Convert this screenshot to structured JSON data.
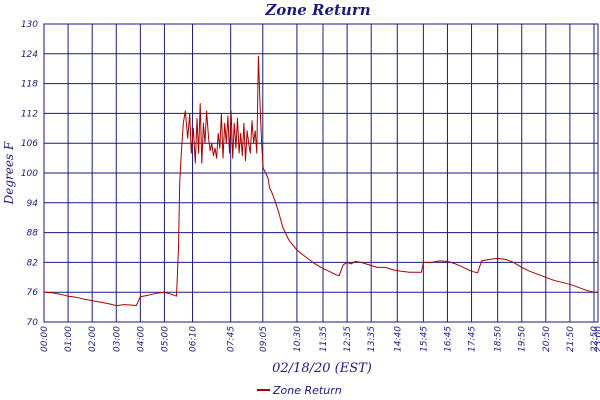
{
  "chart_data": {
    "type": "line",
    "title": "Zone Return",
    "xlabel": "02/18/20 (EST)",
    "ylabel": "Degrees F",
    "ylim": [
      70,
      130
    ],
    "yticks": [
      70,
      76,
      82,
      88,
      94,
      100,
      106,
      112,
      118,
      124,
      130
    ],
    "xlim": [
      "00:00",
      "23:00"
    ],
    "xtick_labels": [
      "00:00",
      "01:00",
      "02:00",
      "03:00",
      "04:00",
      "05:00",
      "06:10",
      "07:45",
      "09:05",
      "10:30",
      "11:35",
      "12:35",
      "13:35",
      "14:40",
      "15:45",
      "16:45",
      "17:45",
      "18:50",
      "19:50",
      "20:50",
      "21:50",
      "22:50",
      "23:00"
    ],
    "grid": true,
    "legend_position": "bottom-center",
    "series": [
      {
        "name": "Zone Return",
        "color": "#aa0000",
        "points": [
          [
            "00:00",
            76.0
          ],
          [
            "00:20",
            75.9
          ],
          [
            "00:40",
            75.6
          ],
          [
            "01:00",
            75.2
          ],
          [
            "01:20",
            75.0
          ],
          [
            "01:40",
            74.6
          ],
          [
            "02:00",
            74.3
          ],
          [
            "02:20",
            74.0
          ],
          [
            "02:40",
            73.7
          ],
          [
            "03:00",
            73.3
          ],
          [
            "03:20",
            73.5
          ],
          [
            "03:40",
            73.4
          ],
          [
            "03:50",
            73.3
          ],
          [
            "04:00",
            75.1
          ],
          [
            "04:20",
            75.4
          ],
          [
            "04:40",
            75.8
          ],
          [
            "05:00",
            76.0
          ],
          [
            "05:20",
            75.5
          ],
          [
            "05:30",
            75.2
          ],
          [
            "05:35",
            85.0
          ],
          [
            "05:38",
            98.0
          ],
          [
            "05:42",
            104.0
          ],
          [
            "05:47",
            110.0
          ],
          [
            "05:52",
            112.5
          ],
          [
            "05:58",
            107.0
          ],
          [
            "06:03",
            112.0
          ],
          [
            "06:07",
            104.0
          ],
          [
            "06:12",
            109.0
          ],
          [
            "06:17",
            102.0
          ],
          [
            "06:21",
            111.0
          ],
          [
            "06:25",
            104.0
          ],
          [
            "06:29",
            114.0
          ],
          [
            "06:33",
            102.0
          ],
          [
            "06:37",
            110.0
          ],
          [
            "06:41",
            106.0
          ],
          [
            "06:45",
            112.5
          ],
          [
            "06:50",
            107.0
          ],
          [
            "06:54",
            104.5
          ],
          [
            "06:58",
            106.0
          ],
          [
            "07:02",
            103.5
          ],
          [
            "07:06",
            105.0
          ],
          [
            "07:10",
            103.0
          ],
          [
            "07:14",
            108.0
          ],
          [
            "07:18",
            105.0
          ],
          [
            "07:22",
            112.0
          ],
          [
            "07:26",
            103.0
          ],
          [
            "07:30",
            110.0
          ],
          [
            "07:34",
            106.0
          ],
          [
            "07:38",
            111.5
          ],
          [
            "07:42",
            104.0
          ],
          [
            "07:46",
            112.5
          ],
          [
            "07:50",
            103.0
          ],
          [
            "07:54",
            110.0
          ],
          [
            "07:58",
            105.0
          ],
          [
            "08:02",
            111.0
          ],
          [
            "08:06",
            104.0
          ],
          [
            "08:10",
            108.0
          ],
          [
            "08:14",
            103.5
          ],
          [
            "08:18",
            110.0
          ],
          [
            "08:22",
            102.5
          ],
          [
            "08:26",
            108.5
          ],
          [
            "08:30",
            106.0
          ],
          [
            "08:34",
            104.0
          ],
          [
            "08:38",
            110.5
          ],
          [
            "08:42",
            106.0
          ],
          [
            "08:46",
            108.5
          ],
          [
            "08:50",
            104.0
          ],
          [
            "08:54",
            123.5
          ],
          [
            "08:58",
            114.0
          ],
          [
            "09:02",
            106.0
          ],
          [
            "09:06",
            101.0
          ],
          [
            "09:12",
            100.0
          ],
          [
            "09:18",
            99.0
          ],
          [
            "09:22",
            97.0
          ],
          [
            "09:28",
            96.0
          ],
          [
            "09:35",
            94.5
          ],
          [
            "09:45",
            92.0
          ],
          [
            "09:55",
            89.0
          ],
          [
            "10:10",
            86.5
          ],
          [
            "10:30",
            84.5
          ],
          [
            "10:50",
            83.2
          ],
          [
            "11:10",
            82.0
          ],
          [
            "11:30",
            81.0
          ],
          [
            "11:50",
            80.2
          ],
          [
            "12:05",
            79.6
          ],
          [
            "12:15",
            79.3
          ],
          [
            "12:25",
            81.5
          ],
          [
            "12:35",
            82.0
          ],
          [
            "12:45",
            81.7
          ],
          [
            "12:55",
            82.2
          ],
          [
            "13:10",
            82.0
          ],
          [
            "13:30",
            81.5
          ],
          [
            "13:50",
            81.0
          ],
          [
            "14:10",
            81.0
          ],
          [
            "14:30",
            80.5
          ],
          [
            "14:50",
            80.2
          ],
          [
            "15:10",
            80.0
          ],
          [
            "15:30",
            80.0
          ],
          [
            "15:40",
            80.0
          ],
          [
            "15:45",
            82.0
          ],
          [
            "16:05",
            82.0
          ],
          [
            "16:25",
            82.3
          ],
          [
            "16:45",
            82.2
          ],
          [
            "17:05",
            81.7
          ],
          [
            "17:25",
            81.0
          ],
          [
            "17:45",
            80.2
          ],
          [
            "18:00",
            79.9
          ],
          [
            "18:10",
            82.3
          ],
          [
            "18:30",
            82.6
          ],
          [
            "18:50",
            82.8
          ],
          [
            "19:10",
            82.6
          ],
          [
            "19:30",
            82.0
          ],
          [
            "19:50",
            81.0
          ],
          [
            "20:10",
            80.2
          ],
          [
            "20:30",
            79.6
          ],
          [
            "20:50",
            79.0
          ],
          [
            "21:10",
            78.4
          ],
          [
            "21:30",
            78.0
          ],
          [
            "21:50",
            77.6
          ],
          [
            "22:10",
            77.0
          ],
          [
            "22:30",
            76.4
          ],
          [
            "22:50",
            76.0
          ],
          [
            "23:00",
            76.0
          ]
        ]
      }
    ]
  }
}
